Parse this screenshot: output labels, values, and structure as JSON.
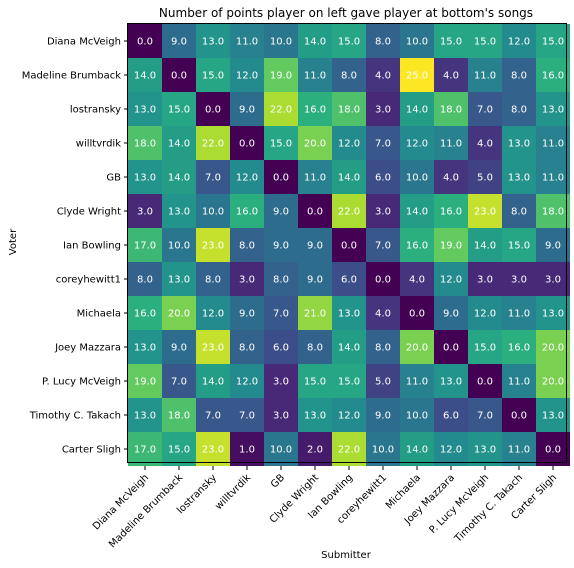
{
  "chart_data": {
    "type": "heatmap",
    "title": "Number of points player on left gave player at bottom's songs",
    "xlabel": "Submitter",
    "ylabel": "Voter",
    "rows": [
      "Diana McVeigh",
      "Madeline Brumback",
      "lostransky",
      "willtvrdik",
      "GB",
      "Clyde Wright",
      "Ian Bowling",
      "coreyhewitt1",
      "Michaela",
      "Joey Mazzara",
      "P. Lucy McVeigh",
      "Timothy C. Takach",
      "Carter Sligh"
    ],
    "columns": [
      "Diana McVeigh",
      "Madeline Brumback",
      "lostransky",
      "willtvrdik",
      "GB",
      "Clyde Wright",
      "Ian Bowling",
      "coreyhewitt1",
      "Michaela",
      "Joey Mazzara",
      "P. Lucy McVeigh",
      "Timothy C. Takach",
      "Carter Sligh"
    ],
    "values": [
      [
        0.0,
        9.0,
        13.0,
        11.0,
        10.0,
        14.0,
        15.0,
        8.0,
        10.0,
        15.0,
        15.0,
        12.0,
        15.0
      ],
      [
        14.0,
        0.0,
        15.0,
        12.0,
        19.0,
        11.0,
        8.0,
        4.0,
        25.0,
        4.0,
        11.0,
        8.0,
        16.0
      ],
      [
        13.0,
        15.0,
        0.0,
        9.0,
        22.0,
        16.0,
        18.0,
        3.0,
        14.0,
        18.0,
        7.0,
        8.0,
        13.0
      ],
      [
        18.0,
        14.0,
        22.0,
        0.0,
        15.0,
        20.0,
        12.0,
        7.0,
        12.0,
        11.0,
        4.0,
        13.0,
        11.0
      ],
      [
        13.0,
        14.0,
        7.0,
        12.0,
        0.0,
        11.0,
        14.0,
        6.0,
        10.0,
        4.0,
        5.0,
        13.0,
        11.0
      ],
      [
        3.0,
        13.0,
        10.0,
        16.0,
        9.0,
        0.0,
        22.0,
        3.0,
        14.0,
        16.0,
        23.0,
        8.0,
        18.0
      ],
      [
        17.0,
        10.0,
        23.0,
        8.0,
        9.0,
        9.0,
        0.0,
        7.0,
        16.0,
        19.0,
        14.0,
        15.0,
        9.0
      ],
      [
        8.0,
        13.0,
        8.0,
        3.0,
        8.0,
        9.0,
        6.0,
        0.0,
        4.0,
        12.0,
        3.0,
        3.0,
        3.0
      ],
      [
        16.0,
        20.0,
        12.0,
        9.0,
        7.0,
        21.0,
        13.0,
        4.0,
        0.0,
        9.0,
        12.0,
        11.0,
        13.0
      ],
      [
        13.0,
        9.0,
        23.0,
        8.0,
        6.0,
        8.0,
        14.0,
        8.0,
        20.0,
        0.0,
        15.0,
        16.0,
        20.0
      ],
      [
        19.0,
        7.0,
        14.0,
        12.0,
        3.0,
        15.0,
        15.0,
        5.0,
        11.0,
        13.0,
        0.0,
        11.0,
        20.0
      ],
      [
        13.0,
        18.0,
        7.0,
        7.0,
        3.0,
        13.0,
        12.0,
        9.0,
        10.0,
        6.0,
        7.0,
        0.0,
        13.0
      ],
      [
        17.0,
        15.0,
        23.0,
        1.0,
        10.0,
        2.0,
        22.0,
        10.0,
        14.0,
        12.0,
        13.0,
        11.0,
        0.0
      ]
    ],
    "colormap": "viridis",
    "value_range": [
      0,
      25
    ],
    "cell_label_color": "#ffffff",
    "grid": false,
    "legend": "none"
  }
}
